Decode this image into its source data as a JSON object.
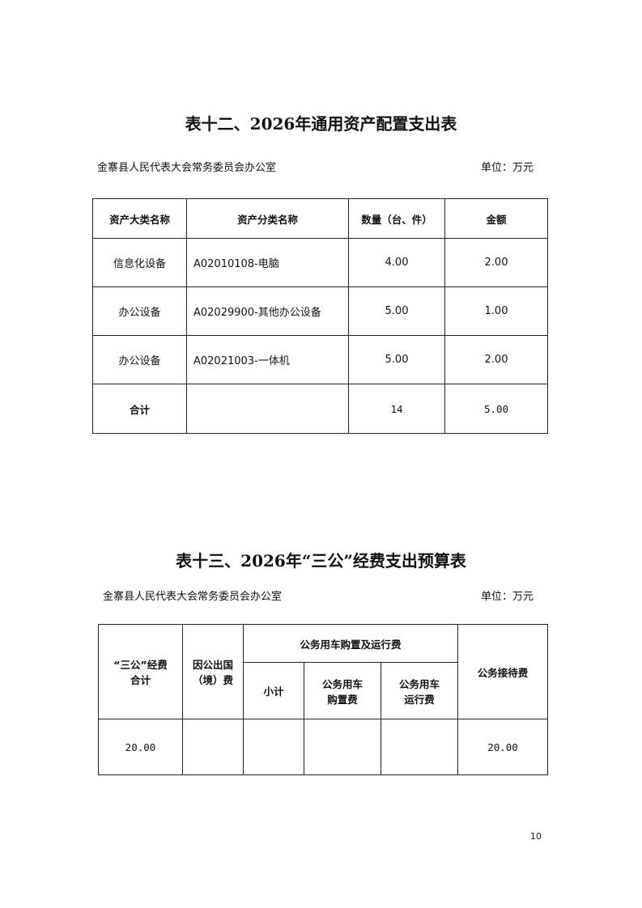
{
  "table12": {
    "title": "表十二、2026年通用资产配置支出表",
    "org": "金寨县人民代表大会常务委员会办公室",
    "unit": "单位：万元",
    "headers": [
      "资产大类名称",
      "资产分类名称",
      "数量（台、件）",
      "金额"
    ],
    "rows": [
      [
        "信息化设备",
        "A02010108-电脑",
        "4.00",
        "2.00"
      ],
      [
        "办公设备",
        "A02029900-其他办公设备",
        "5.00",
        "1.00"
      ],
      [
        "办公设备",
        "A02021003-一体机",
        "5.00",
        "2.00"
      ]
    ],
    "total": [
      "合计",
      "",
      "14",
      "5.00"
    ]
  },
  "table13": {
    "title": "表十三、2026年“三公”经费支出预算表",
    "org": "金寨县人民代表大会常务委员会办公室",
    "unit": "单位：万元",
    "headers": {
      "total": "“三公”经费合计",
      "abroad": "因公出国（境）费",
      "vehicle_group": "公务用车购置及运行费",
      "subtotal": "小计",
      "purchase": "公务用车购置费",
      "operation": "公务用车运行费",
      "reception": "公务接待费"
    },
    "row": {
      "total": "20.00",
      "abroad": "",
      "subtotal": "",
      "purchase": "",
      "operation": "",
      "reception": "20.00"
    }
  },
  "page_number": "10"
}
